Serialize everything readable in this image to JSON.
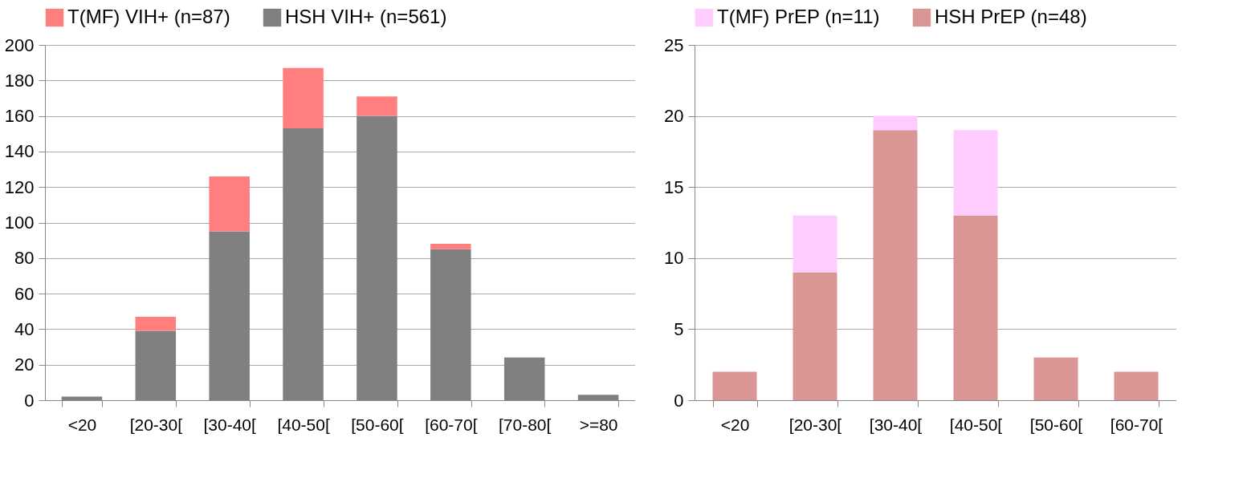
{
  "chart_data": [
    {
      "type": "bar",
      "stacked": true,
      "categories": [
        "<20",
        "[20-30[",
        "[30-40[",
        "[40-50[",
        "[50-60[",
        "[60-70[",
        "[70-80[",
        ">=80"
      ],
      "series": [
        {
          "name": "HSH VIH+ (n=561)",
          "color": "#808080",
          "values": [
            2,
            39,
            95,
            153,
            160,
            85,
            24,
            3
          ]
        },
        {
          "name": "T(MF) VIH+ (n=87)",
          "color": "#ff7f7f",
          "values": [
            0,
            8,
            31,
            34,
            11,
            3,
            0,
            0
          ]
        }
      ],
      "ylim": [
        0,
        200
      ],
      "yticks": [
        0,
        20,
        40,
        60,
        80,
        100,
        120,
        140,
        160,
        180,
        200
      ],
      "grid": "y",
      "legend": "top"
    },
    {
      "type": "bar",
      "stacked": true,
      "categories": [
        "<20",
        "[20-30[",
        "[30-40[",
        "[40-50[",
        "[50-60[",
        "[60-70["
      ],
      "series": [
        {
          "name": "HSH PrEP (n=48)",
          "color": "#d99694",
          "values": [
            2,
            9,
            19,
            13,
            3,
            2
          ]
        },
        {
          "name": "T(MF) PrEP (n=11)",
          "color": "#ffccff",
          "values": [
            0,
            4,
            1,
            6,
            0,
            0
          ]
        }
      ],
      "ylim": [
        0,
        25
      ],
      "yticks": [
        0,
        5,
        10,
        15,
        20,
        25
      ],
      "grid": "y",
      "legend": "top"
    }
  ]
}
